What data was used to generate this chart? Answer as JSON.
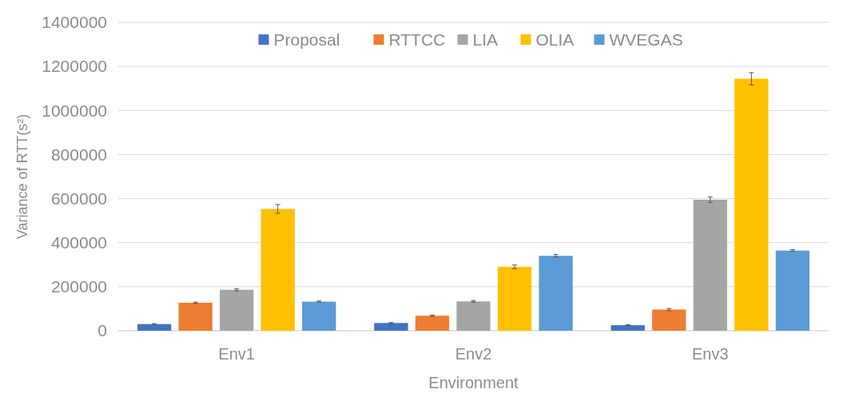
{
  "chart_data": {
    "type": "bar",
    "xlabel": "Environment",
    "ylabel": "Variance of RTT(s²)",
    "categories": [
      "Env1",
      "Env2",
      "Env3"
    ],
    "series": [
      {
        "name": "Proposal",
        "color": "#4472c4",
        "values": [
          30000,
          35000,
          25000
        ],
        "errors": [
          2000,
          2000,
          2000
        ]
      },
      {
        "name": "RTTCC",
        "color": "#ed7d31",
        "values": [
          127000,
          68000,
          96000
        ],
        "errors": [
          3000,
          3000,
          5000
        ]
      },
      {
        "name": "LIA",
        "color": "#a5a5a5",
        "values": [
          186000,
          133000,
          595000
        ],
        "errors": [
          5000,
          4000,
          12000
        ]
      },
      {
        "name": "OLIA",
        "color": "#ffc000",
        "values": [
          553000,
          290000,
          1144000
        ],
        "errors": [
          20000,
          8000,
          28000
        ]
      },
      {
        "name": "WVEGAS",
        "color": "#5b9bd5",
        "values": [
          132000,
          340000,
          364000
        ],
        "errors": [
          3000,
          6000,
          4000
        ]
      }
    ],
    "ylim": [
      0,
      1400000
    ],
    "yticks": [
      0,
      200000,
      400000,
      600000,
      800000,
      1000000,
      1200000,
      1400000
    ],
    "grid": "y",
    "legend": "top"
  }
}
